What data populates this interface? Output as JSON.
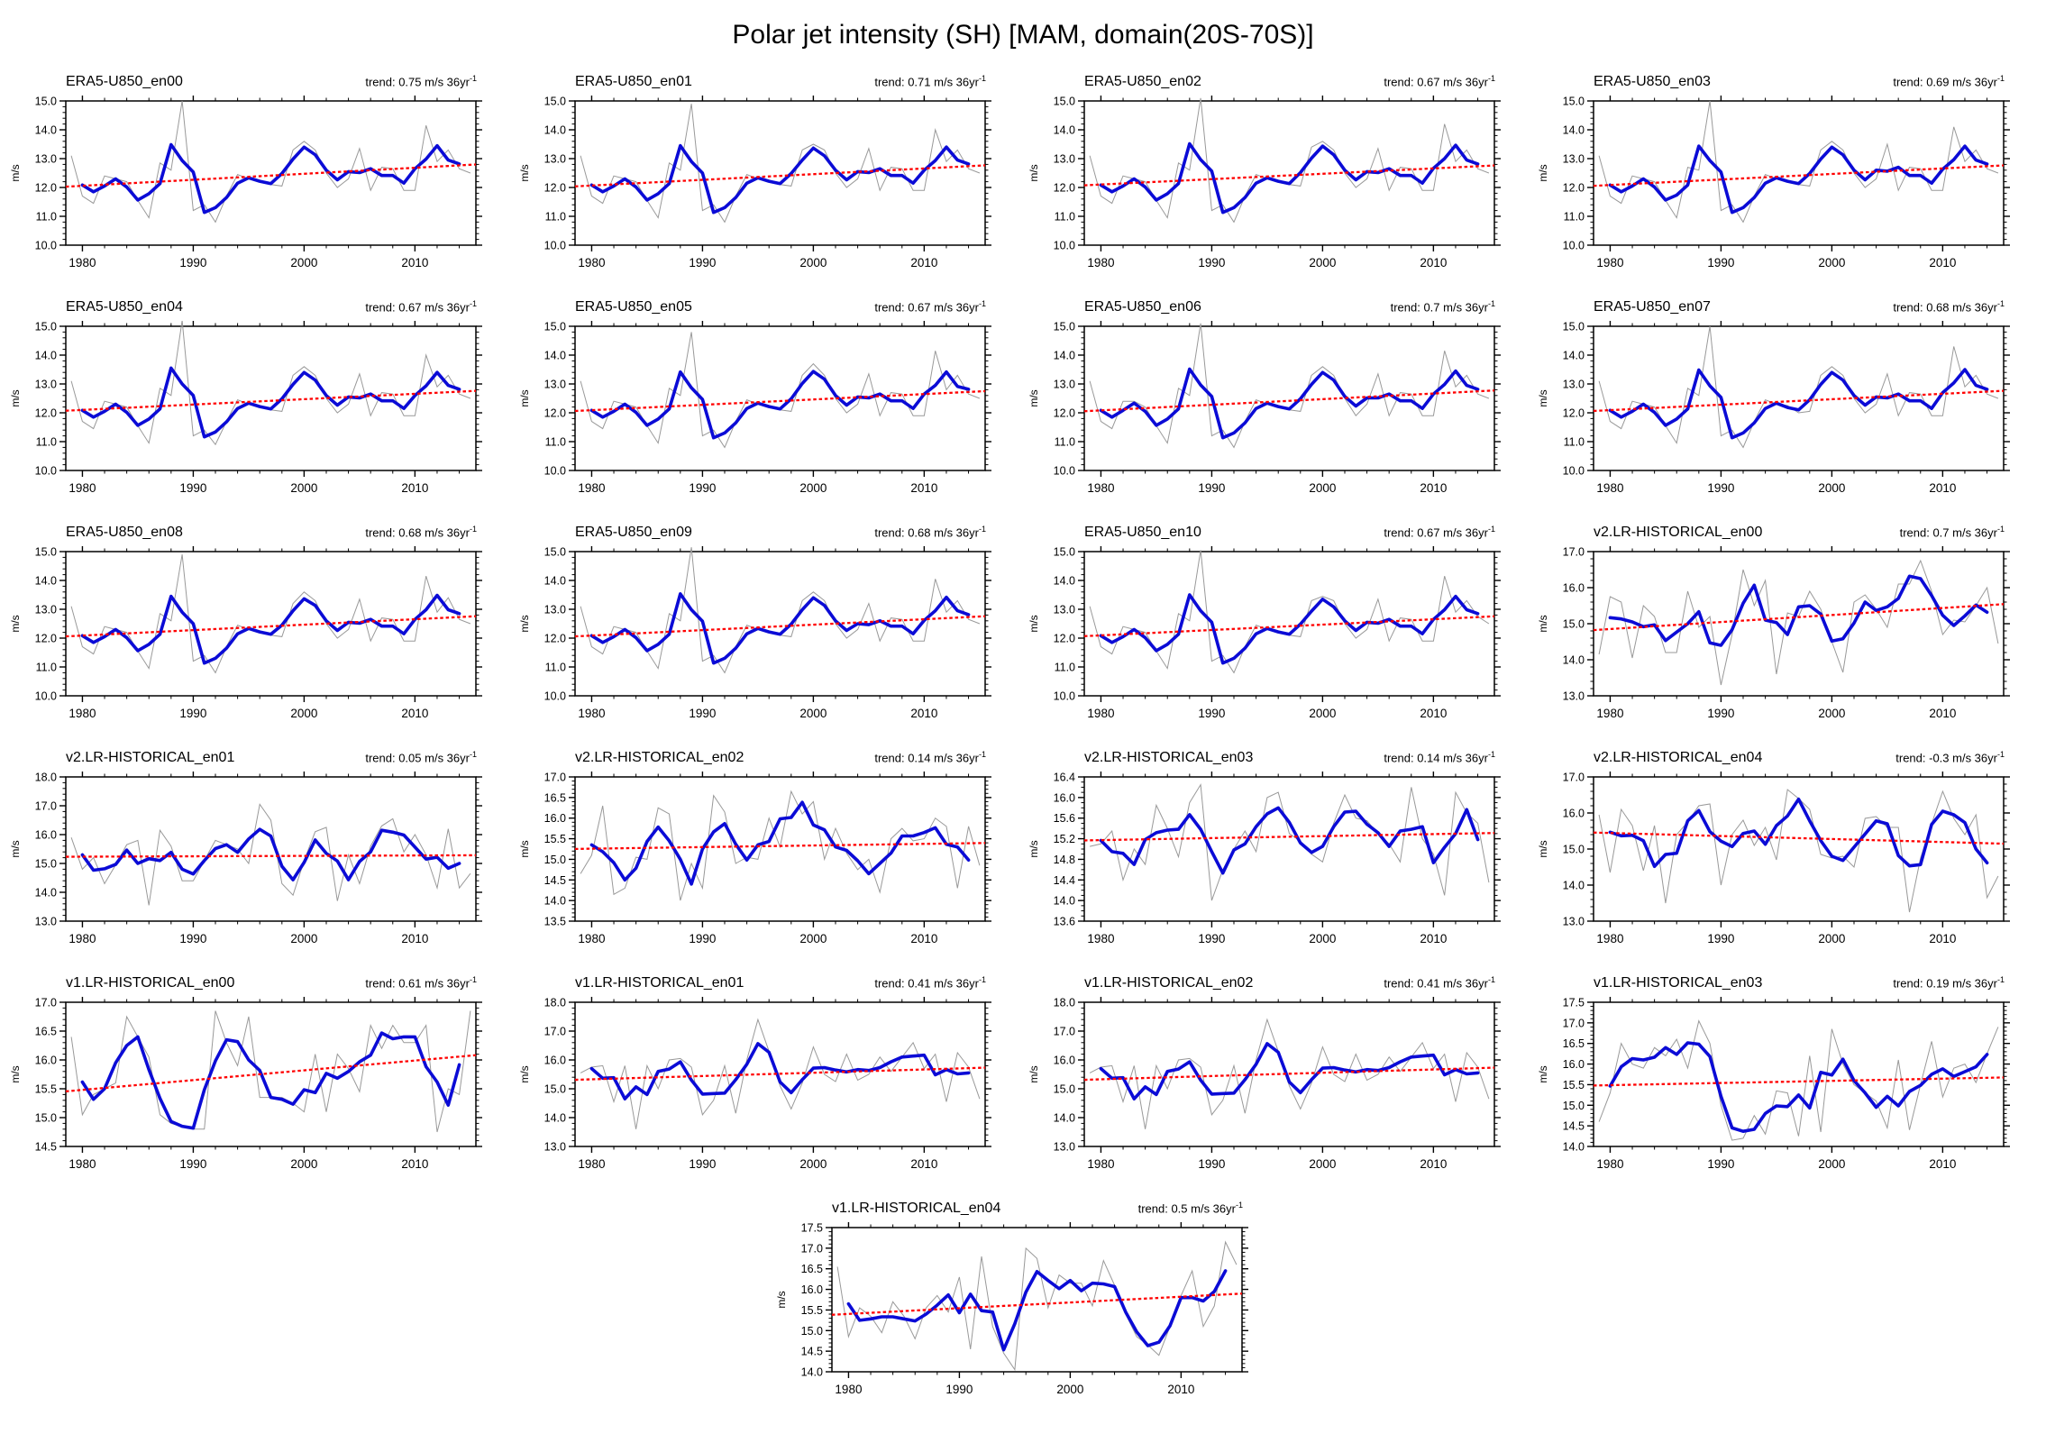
{
  "page_title": "Polar jet intensity (SH) [MAM, domain(20S-70S)]",
  "labels": {
    "trend_prefix": "trend: ",
    "trend_unit": " m/s 36yr",
    "trend_sup": "-1",
    "y_axis": "m/s"
  },
  "colors": {
    "annual_line": "#999999",
    "smoothed_line": "#0b0bd6",
    "trend_line": "#ff0000",
    "axis": "#000000"
  },
  "chart_data": {
    "type": "line",
    "x": {
      "start_year": 1979,
      "end_year": 2015,
      "xmin": 1978.5,
      "xmax": 2015.5,
      "major_ticks": [
        1980,
        1990,
        2000,
        2010
      ],
      "minor_step": 2
    },
    "derived": {
      "smooth_window": 3
    },
    "panels": [
      {
        "title": "ERA5-U850_en00",
        "trend": "0.75",
        "trend_value": 0.75,
        "ylim": [
          10,
          15
        ],
        "ytick_step": 1.0,
        "yminor_step": 0.2,
        "values": [
          13.1,
          11.7,
          11.45,
          12.4,
          12.3,
          12.2,
          11.55,
          10.95,
          12.85,
          12.6,
          15.0,
          11.2,
          11.4,
          10.8,
          11.7,
          12.45,
          12.3,
          12.25,
          12.1,
          12.05,
          13.3,
          13.6,
          13.3,
          12.5,
          12.0,
          12.3,
          13.35,
          11.9,
          12.7,
          12.65,
          11.9,
          11.9,
          14.15,
          12.9,
          13.3,
          12.65,
          12.5
        ]
      },
      {
        "title": "ERA5-U850_en01",
        "trend": "0.71",
        "trend_value": 0.71,
        "ylim": [
          10,
          15
        ],
        "ytick_step": 1.0,
        "yminor_step": 0.2,
        "values": [
          13.1,
          11.7,
          11.45,
          12.4,
          12.3,
          12.2,
          11.55,
          10.95,
          12.85,
          12.6,
          14.9,
          11.2,
          11.4,
          10.8,
          11.7,
          12.45,
          12.3,
          12.25,
          12.1,
          12.05,
          13.3,
          13.5,
          13.3,
          12.5,
          12.0,
          12.3,
          13.35,
          11.9,
          12.7,
          12.65,
          11.9,
          11.9,
          14.0,
          12.9,
          13.3,
          12.65,
          12.5
        ]
      },
      {
        "title": "ERA5-U850_en02",
        "trend": "0.67",
        "trend_value": 0.67,
        "ylim": [
          10,
          15
        ],
        "ytick_step": 1.0,
        "yminor_step": 0.2,
        "values": [
          13.1,
          11.7,
          11.45,
          12.4,
          12.3,
          12.2,
          11.55,
          10.95,
          12.85,
          12.6,
          15.1,
          11.2,
          11.4,
          10.8,
          11.7,
          12.45,
          12.3,
          12.25,
          12.1,
          12.05,
          13.4,
          13.6,
          13.3,
          12.5,
          12.0,
          12.3,
          13.35,
          11.9,
          12.7,
          12.65,
          11.9,
          11.9,
          14.2,
          12.9,
          13.3,
          12.65,
          12.5
        ]
      },
      {
        "title": "ERA5-U850_en03",
        "trend": "0.69",
        "trend_value": 0.69,
        "ylim": [
          10,
          15
        ],
        "ytick_step": 1.0,
        "yminor_step": 0.2,
        "values": [
          13.1,
          11.7,
          11.45,
          12.4,
          12.3,
          12.2,
          11.55,
          10.95,
          12.7,
          12.6,
          15.0,
          11.2,
          11.4,
          10.8,
          11.7,
          12.45,
          12.3,
          12.25,
          12.1,
          12.05,
          13.3,
          13.6,
          13.3,
          12.5,
          12.0,
          12.3,
          13.5,
          11.9,
          12.7,
          12.65,
          11.9,
          11.9,
          14.1,
          12.9,
          13.3,
          12.65,
          12.5
        ]
      },
      {
        "title": "ERA5-U850_en04",
        "trend": "0.67",
        "trend_value": 0.67,
        "ylim": [
          10,
          15
        ],
        "ytick_step": 1.0,
        "yminor_step": 0.2,
        "values": [
          13.1,
          11.7,
          11.45,
          12.4,
          12.3,
          12.2,
          11.55,
          10.95,
          12.85,
          12.6,
          15.2,
          11.2,
          11.4,
          10.9,
          11.7,
          12.45,
          12.3,
          12.25,
          12.1,
          12.05,
          13.3,
          13.6,
          13.3,
          12.5,
          12.0,
          12.3,
          13.35,
          11.9,
          12.7,
          12.65,
          11.9,
          11.9,
          14.0,
          12.9,
          13.3,
          12.65,
          12.5
        ]
      },
      {
        "title": "ERA5-U850_en05",
        "trend": "0.67",
        "trend_value": 0.67,
        "ylim": [
          10,
          15
        ],
        "ytick_step": 1.0,
        "yminor_step": 0.2,
        "values": [
          13.1,
          11.7,
          11.45,
          12.4,
          12.3,
          12.2,
          11.55,
          10.95,
          12.85,
          12.6,
          14.8,
          11.2,
          11.4,
          10.8,
          11.7,
          12.45,
          12.3,
          12.25,
          12.1,
          12.05,
          13.3,
          13.7,
          13.3,
          12.5,
          12.0,
          12.3,
          13.35,
          11.9,
          12.7,
          12.65,
          11.9,
          11.9,
          14.15,
          12.8,
          13.3,
          12.65,
          12.5
        ]
      },
      {
        "title": "ERA5-U850_en06",
        "trend": "0.7",
        "trend_value": 0.7,
        "ylim": [
          10,
          15
        ],
        "ytick_step": 1.0,
        "yminor_step": 0.2,
        "values": [
          13.1,
          11.7,
          11.45,
          12.4,
          12.4,
          12.2,
          11.55,
          10.95,
          12.85,
          12.6,
          15.1,
          11.2,
          11.4,
          10.8,
          11.7,
          12.45,
          12.3,
          12.25,
          12.1,
          12.05,
          13.3,
          13.6,
          13.3,
          12.5,
          11.9,
          12.3,
          13.35,
          11.9,
          12.7,
          12.65,
          11.9,
          11.9,
          14.15,
          12.9,
          13.3,
          12.65,
          12.5
        ]
      },
      {
        "title": "ERA5-U850_en07",
        "trend": "0.68",
        "trend_value": 0.68,
        "ylim": [
          10,
          15
        ],
        "ytick_step": 1.0,
        "yminor_step": 0.2,
        "values": [
          13.1,
          11.7,
          11.45,
          12.4,
          12.3,
          12.2,
          11.55,
          10.95,
          12.85,
          12.6,
          15.0,
          11.2,
          11.4,
          10.8,
          11.7,
          12.45,
          12.3,
          12.25,
          12.0,
          12.05,
          13.3,
          13.6,
          13.3,
          12.5,
          12.0,
          12.3,
          13.35,
          11.9,
          12.7,
          12.65,
          11.9,
          11.9,
          14.3,
          12.9,
          13.3,
          12.65,
          12.5
        ]
      },
      {
        "title": "ERA5-U850_en08",
        "trend": "0.68",
        "trend_value": 0.68,
        "ylim": [
          10,
          15
        ],
        "ytick_step": 1.0,
        "yminor_step": 0.2,
        "values": [
          13.1,
          11.7,
          11.45,
          12.4,
          12.3,
          12.2,
          11.55,
          10.95,
          12.85,
          12.6,
          14.9,
          11.2,
          11.4,
          10.8,
          11.7,
          12.45,
          12.3,
          12.25,
          12.1,
          12.05,
          13.2,
          13.6,
          13.3,
          12.5,
          12.0,
          12.3,
          13.35,
          11.9,
          12.7,
          12.65,
          11.9,
          11.9,
          14.15,
          12.9,
          13.4,
          12.65,
          12.5
        ]
      },
      {
        "title": "ERA5-U850_en09",
        "trend": "0.68",
        "trend_value": 0.68,
        "ylim": [
          10,
          15
        ],
        "ytick_step": 1.0,
        "yminor_step": 0.2,
        "values": [
          13.1,
          11.7,
          11.45,
          12.4,
          12.3,
          12.2,
          11.55,
          10.95,
          12.85,
          12.6,
          15.15,
          11.2,
          11.4,
          10.8,
          11.7,
          12.45,
          12.3,
          12.25,
          12.1,
          12.05,
          13.3,
          13.6,
          13.3,
          12.5,
          12.0,
          12.3,
          13.2,
          11.9,
          12.7,
          12.65,
          11.9,
          11.9,
          14.05,
          12.9,
          13.3,
          12.65,
          12.5
        ]
      },
      {
        "title": "ERA5-U850_en10",
        "trend": "0.67",
        "trend_value": 0.67,
        "ylim": [
          10,
          15
        ],
        "ytick_step": 1.0,
        "yminor_step": 0.2,
        "values": [
          13.1,
          11.7,
          11.45,
          12.4,
          12.3,
          12.2,
          11.55,
          10.95,
          12.85,
          12.6,
          15.05,
          11.2,
          11.4,
          10.8,
          11.7,
          12.45,
          12.3,
          12.25,
          12.1,
          12.05,
          13.3,
          13.45,
          13.3,
          12.5,
          12.0,
          12.3,
          13.35,
          11.9,
          12.7,
          12.65,
          11.9,
          11.9,
          14.15,
          12.9,
          13.3,
          12.75,
          12.5
        ]
      },
      {
        "title": "v2.LR-HISTORICAL_en00",
        "trend": "0.7",
        "trend_value": 0.7,
        "ylim": [
          13,
          17
        ],
        "ytick_step": 1.0,
        "yminor_step": 0.2,
        "values": [
          14.15,
          15.75,
          15.6,
          14.05,
          15.5,
          15.2,
          14.2,
          14.2,
          15.9,
          14.9,
          15.2,
          13.3,
          14.7,
          16.5,
          15.5,
          16.2,
          13.6,
          15.3,
          15.2,
          15.9,
          15.4,
          14.5,
          13.65,
          15.6,
          15.8,
          15.4,
          14.9,
          16.1,
          16.1,
          16.75,
          15.9,
          14.7,
          15.1,
          15.05,
          15.5,
          16.0,
          14.45
        ]
      },
      {
        "title": "v2.LR-HISTORICAL_en01",
        "trend": "0.05",
        "trend_value": 0.05,
        "ylim": [
          13,
          18
        ],
        "ytick_step": 1.0,
        "yminor_step": 0.2,
        "values": [
          15.9,
          14.8,
          15.2,
          14.3,
          14.95,
          15.65,
          15.8,
          13.55,
          16.15,
          15.6,
          14.4,
          14.4,
          15.1,
          15.8,
          15.65,
          15.5,
          15.0,
          17.05,
          16.5,
          14.3,
          13.9,
          15.1,
          16.1,
          16.25,
          13.7,
          15.3,
          14.3,
          15.6,
          16.3,
          16.55,
          15.4,
          16.0,
          15.3,
          14.15,
          16.2,
          14.15,
          14.65
        ]
      },
      {
        "title": "v2.LR-HISTORICAL_en02",
        "trend": "0.14",
        "trend_value": 0.14,
        "ylim": [
          13.5,
          17
        ],
        "ytick_step": 0.5,
        "yminor_step": 0.1,
        "values": [
          14.65,
          15.1,
          16.3,
          14.15,
          14.3,
          15.05,
          15.0,
          16.25,
          16.1,
          14.0,
          14.9,
          14.3,
          16.55,
          16.15,
          14.9,
          15.05,
          15.0,
          16.0,
          15.3,
          16.65,
          16.1,
          16.4,
          15.0,
          15.75,
          15.15,
          14.75,
          15.0,
          14.2,
          15.5,
          15.75,
          15.45,
          15.5,
          16.0,
          15.8,
          14.3,
          15.8,
          14.85
        ]
      },
      {
        "title": "v2.LR-HISTORICAL_en03",
        "trend": "0.14",
        "trend_value": 0.14,
        "ylim": [
          13.6,
          16.4
        ],
        "ytick_step": 0.4,
        "yminor_step": 0.1,
        "values": [
          15.05,
          15.1,
          15.35,
          14.4,
          15.0,
          14.7,
          15.85,
          15.4,
          14.85,
          15.9,
          16.25,
          14.0,
          14.6,
          15.0,
          15.35,
          14.95,
          16.0,
          16.1,
          15.3,
          15.15,
          14.9,
          14.75,
          15.5,
          16.05,
          15.6,
          15.55,
          15.3,
          15.1,
          14.75,
          16.2,
          15.2,
          14.9,
          14.1,
          16.1,
          15.7,
          15.5,
          14.35
        ]
      },
      {
        "title": "v2.LR-HISTORICAL_en04",
        "trend": "-0.3",
        "trend_value": -0.3,
        "ylim": [
          13,
          17
        ],
        "ytick_step": 1.0,
        "yminor_step": 0.2,
        "values": [
          15.95,
          14.35,
          16.1,
          15.65,
          14.4,
          15.65,
          13.5,
          15.4,
          15.75,
          16.2,
          16.25,
          14.0,
          15.4,
          15.8,
          15.1,
          15.6,
          14.7,
          16.65,
          16.4,
          16.1,
          14.85,
          14.75,
          14.8,
          14.5,
          15.85,
          15.9,
          15.6,
          15.6,
          13.25,
          14.75,
          15.7,
          16.6,
          15.85,
          15.4,
          15.95,
          13.65,
          14.25
        ]
      },
      {
        "title": "v1.LR-HISTORICAL_en00",
        "trend": "0.61",
        "trend_value": 0.61,
        "ylim": [
          14.5,
          17
        ],
        "ytick_step": 0.5,
        "yminor_step": 0.1,
        "values": [
          16.4,
          15.05,
          15.4,
          15.5,
          15.6,
          16.75,
          16.4,
          16.05,
          15.05,
          14.9,
          14.85,
          14.8,
          14.8,
          16.85,
          16.3,
          15.9,
          16.75,
          15.35,
          15.35,
          15.35,
          15.25,
          15.1,
          16.1,
          15.1,
          16.1,
          15.85,
          15.45,
          16.6,
          16.2,
          16.6,
          16.3,
          16.3,
          16.6,
          14.75,
          15.5,
          15.4,
          16.85
        ]
      },
      {
        "title": "v1.LR-HISTORICAL_en01",
        "trend": "0.41",
        "trend_value": 0.41,
        "ylim": [
          13,
          18
        ],
        "ytick_step": 1.0,
        "yminor_step": 0.2,
        "values": [
          15.55,
          15.75,
          15.8,
          14.55,
          15.8,
          13.6,
          15.8,
          15.0,
          16.0,
          16.05,
          15.75,
          14.1,
          14.6,
          15.8,
          14.15,
          16.0,
          17.4,
          16.3,
          15.1,
          14.3,
          15.2,
          16.45,
          15.5,
          15.25,
          16.2,
          15.3,
          15.5,
          16.1,
          15.6,
          16.1,
          16.6,
          15.7,
          16.2,
          14.55,
          16.25,
          15.75,
          14.65
        ]
      },
      {
        "title": "v1.LR-HISTORICAL_en02",
        "trend": "0.41",
        "trend_value": 0.41,
        "ylim": [
          13,
          18
        ],
        "ytick_step": 1.0,
        "yminor_step": 0.2,
        "values": [
          15.55,
          15.75,
          15.8,
          14.55,
          15.8,
          13.6,
          15.8,
          15.0,
          16.0,
          16.05,
          15.75,
          14.1,
          14.6,
          15.8,
          14.15,
          16.0,
          17.4,
          16.3,
          15.1,
          14.3,
          15.2,
          16.45,
          15.5,
          15.25,
          16.2,
          15.3,
          15.5,
          16.1,
          15.6,
          16.1,
          16.6,
          15.7,
          16.2,
          14.55,
          16.25,
          15.75,
          14.65
        ]
      },
      {
        "title": "v1.LR-HISTORICAL_en03",
        "trend": "0.19",
        "trend_value": 0.19,
        "ylim": [
          14,
          17.5
        ],
        "ytick_step": 0.5,
        "yminor_step": 0.1,
        "values": [
          14.6,
          15.3,
          16.5,
          16.0,
          15.9,
          16.4,
          16.2,
          16.6,
          15.9,
          17.05,
          16.5,
          15.0,
          14.15,
          14.2,
          14.75,
          14.3,
          15.35,
          15.3,
          14.25,
          16.2,
          14.35,
          16.85,
          16.0,
          15.5,
          15.3,
          15.1,
          14.45,
          16.1,
          14.4,
          15.5,
          16.55,
          15.2,
          15.9,
          16.0,
          15.55,
          16.25,
          16.9
        ]
      },
      {
        "title": "v1.LR-HISTORICAL_en04",
        "trend": "0.5",
        "trend_value": 0.5,
        "ylim": [
          14,
          17.5
        ],
        "ytick_step": 0.5,
        "yminor_step": 0.1,
        "values": [
          16.55,
          14.85,
          15.55,
          15.35,
          14.95,
          15.7,
          15.35,
          14.8,
          15.55,
          15.85,
          15.45,
          16.3,
          14.55,
          16.8,
          15.1,
          14.45,
          14.05,
          17.0,
          16.75,
          15.55,
          16.35,
          16.15,
          16.15,
          15.6,
          16.7,
          16.1,
          15.4,
          14.85,
          14.65,
          14.4,
          15.1,
          15.85,
          16.45,
          15.1,
          15.6,
          17.15,
          16.6
        ]
      }
    ]
  }
}
